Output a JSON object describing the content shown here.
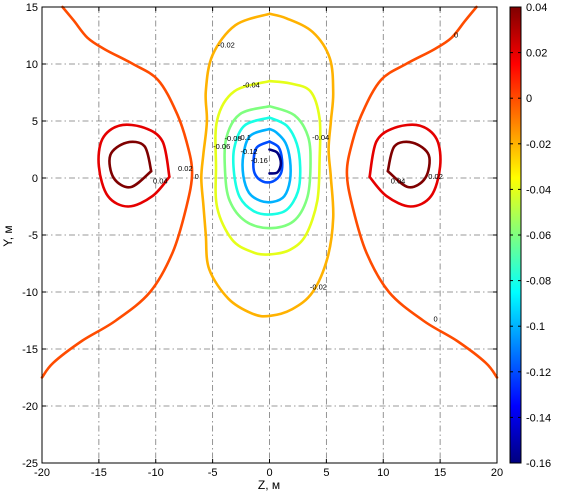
{
  "chart_data": {
    "type": "contour",
    "title": "",
    "xlabel": "Z, м",
    "ylabel": "Y, м",
    "xlim": [
      -20,
      20
    ],
    "ylim": [
      -25,
      15
    ],
    "xticks": [
      -20,
      -15,
      -10,
      -5,
      0,
      5,
      10,
      15,
      20
    ],
    "yticks": [
      -25,
      -20,
      -15,
      -10,
      -5,
      0,
      5,
      10,
      15
    ],
    "grid": true,
    "colorbar": {
      "min": -0.16,
      "max": 0.04,
      "ticks": [
        0.04,
        0.02,
        0,
        -0.02,
        -0.04,
        -0.06,
        -0.08,
        -0.1,
        -0.12,
        -0.14,
        -0.16
      ],
      "tick_labels": [
        "0.04",
        "0.02",
        "0",
        "-0.02",
        "-0.04",
        "-0.06",
        "-0.08",
        "-0.1",
        "-0.12",
        "-0.14",
        "-0.16"
      ],
      "colormap": "jet",
      "colors": [
        "#00007f",
        "#0000ff",
        "#007fff",
        "#00ffff",
        "#7fff7f",
        "#ffff00",
        "#ff7f00",
        "#ff0000",
        "#7f0000"
      ]
    },
    "series": [
      {
        "level": 0,
        "segments": [
          [
            [
              -18.2,
              15
            ],
            [
              -17.2,
              13.8
            ],
            [
              -16,
              12.3
            ],
            [
              -14.5,
              11.3
            ],
            [
              -12,
              10
            ],
            [
              -9.8,
              8.6
            ],
            [
              -8.2,
              5.8
            ],
            [
              -7.3,
              3.2
            ],
            [
              -6.8,
              0.5
            ],
            [
              -7.3,
              -2.5
            ],
            [
              -8.5,
              -6.5
            ],
            [
              -10.5,
              -10
            ],
            [
              -13.5,
              -12.5
            ],
            [
              -16.5,
              -14.3
            ],
            [
              -19,
              -16.2
            ],
            [
              -20,
              -17.5
            ]
          ],
          [
            [
              18.2,
              15
            ],
            [
              17.2,
              13.8
            ],
            [
              16,
              12.3
            ],
            [
              14.5,
              11.3
            ],
            [
              12,
              10
            ],
            [
              9.8,
              8.6
            ],
            [
              8.2,
              5.8
            ],
            [
              7.3,
              3.2
            ],
            [
              6.8,
              0.5
            ],
            [
              7.3,
              -2.5
            ],
            [
              8.5,
              -6.5
            ],
            [
              10.5,
              -10
            ],
            [
              13.5,
              -12.5
            ],
            [
              16.5,
              -14.3
            ],
            [
              19,
              -16.2
            ],
            [
              20,
              -17.5
            ]
          ]
        ],
        "labels": [
          {
            "text": "0",
            "z": 16.4,
            "y": 12.5
          },
          {
            "text": "0",
            "z": -6.4,
            "y": 0.1
          },
          {
            "text": "0",
            "z": 14.6,
            "y": -12.4
          }
        ]
      },
      {
        "level": 0.02,
        "segments": [
          [
            [
              -8.8,
              0.1
            ],
            [
              -9.4,
              3.2
            ],
            [
              -11,
              4.4
            ],
            [
              -13.2,
              4.6
            ],
            [
              -14.7,
              3.4
            ],
            [
              -15,
              1
            ],
            [
              -14.2,
              -1.6
            ],
            [
              -12.4,
              -2.5
            ],
            [
              -10.3,
              -1.6
            ],
            [
              -8.8,
              0.1
            ]
          ],
          [
            [
              8.8,
              0.1
            ],
            [
              9.4,
              3.2
            ],
            [
              11,
              4.4
            ],
            [
              13.2,
              4.6
            ],
            [
              14.7,
              3.4
            ],
            [
              15,
              1
            ],
            [
              14.2,
              -1.6
            ],
            [
              12.4,
              -2.5
            ],
            [
              10.3,
              -1.6
            ],
            [
              8.8,
              0.1
            ]
          ]
        ],
        "labels": [
          {
            "text": "0.02",
            "z": -7.4,
            "y": 0.8
          },
          {
            "text": "0.02",
            "z": 14.6,
            "y": 0.1
          }
        ]
      },
      {
        "level": 0.04,
        "segments": [
          [
            [
              -10.4,
              0.6
            ],
            [
              -11,
              2.8
            ],
            [
              -12.6,
              3.1
            ],
            [
              -14,
              2
            ],
            [
              -13.7,
              0
            ],
            [
              -12.2,
              -0.8
            ],
            [
              -10.4,
              0.6
            ]
          ],
          [
            [
              10.4,
              0.6
            ],
            [
              11,
              2.8
            ],
            [
              12.6,
              3.1
            ],
            [
              14,
              2
            ],
            [
              13.7,
              0
            ],
            [
              12.2,
              -0.8
            ],
            [
              10.4,
              0.6
            ]
          ]
        ],
        "labels": [
          {
            "text": "0.04",
            "z": -9.6,
            "y": -0.3
          },
          {
            "text": "0.04",
            "z": 11.3,
            "y": -0.3
          }
        ]
      },
      {
        "level": -0.02,
        "segments": [
          [
            [
              0,
              14.4
            ],
            [
              -3,
              13.4
            ],
            [
              -5,
              10.8
            ],
            [
              -5.6,
              7.6
            ],
            [
              -5.5,
              5
            ],
            [
              -5.8,
              2.2
            ],
            [
              -6,
              0
            ],
            [
              -5.8,
              -2.5
            ],
            [
              -5.6,
              -5
            ],
            [
              -5.3,
              -8
            ],
            [
              -3.6,
              -10.6
            ],
            [
              -1.5,
              -11.9
            ],
            [
              0,
              -12.1
            ],
            [
              2,
              -11.5
            ],
            [
              3.8,
              -10
            ],
            [
              5.1,
              -7
            ],
            [
              5.6,
              -3.5
            ],
            [
              5.4,
              0
            ],
            [
              5.2,
              2.5
            ],
            [
              5.4,
              5
            ],
            [
              5.6,
              7.5
            ],
            [
              5.3,
              10.5
            ],
            [
              3.8,
              12.8
            ],
            [
              1.5,
              14
            ],
            [
              0,
              14.4
            ]
          ]
        ],
        "labels": [
          {
            "text": "-0.02",
            "z": -3.8,
            "y": 11.6
          },
          {
            "text": "-0.02",
            "z": 4.3,
            "y": -9.6
          }
        ]
      },
      {
        "level": -0.04,
        "segments": [
          [
            [
              0,
              8.5
            ],
            [
              -3.1,
              7.6
            ],
            [
              -4.6,
              5.1
            ],
            [
              -4.7,
              1
            ],
            [
              -4.6,
              -2.6
            ],
            [
              -3.3,
              -5.4
            ],
            [
              -1.5,
              -6.5
            ],
            [
              0,
              -6.7
            ],
            [
              1.8,
              -6.3
            ],
            [
              3.2,
              -5
            ],
            [
              4.2,
              -2
            ],
            [
              4.4,
              1.6
            ],
            [
              4.4,
              5.2
            ],
            [
              3.6,
              7.6
            ],
            [
              1.8,
              8.3
            ],
            [
              0,
              8.5
            ]
          ]
        ],
        "labels": [
          {
            "text": "-0.04",
            "z": -1.6,
            "y": 8.1
          },
          {
            "text": "-0.04",
            "z": 4.5,
            "y": 3.5
          }
        ]
      },
      {
        "level": -0.06,
        "segments": [
          [
            [
              0,
              6.3
            ],
            [
              -2.6,
              5.6
            ],
            [
              -3.8,
              3.5
            ],
            [
              -3.9,
              0.5
            ],
            [
              -3.5,
              -2
            ],
            [
              -2.1,
              -3.8
            ],
            [
              0,
              -4.4
            ],
            [
              2.1,
              -3.8
            ],
            [
              3.3,
              -1.8
            ],
            [
              3.6,
              1
            ],
            [
              3.4,
              3.6
            ],
            [
              2.2,
              5.5
            ],
            [
              0,
              6.3
            ]
          ]
        ],
        "labels": [
          {
            "text": "-0.06",
            "z": -4.2,
            "y": 2.7
          }
        ]
      },
      {
        "level": -0.08,
        "segments": [
          [
            [
              0,
              5.3
            ],
            [
              -2.2,
              4.6
            ],
            [
              -3.1,
              2.6
            ],
            [
              -3.1,
              0.3
            ],
            [
              -2.6,
              -1.7
            ],
            [
              -1.4,
              -2.9
            ],
            [
              0,
              -3.2
            ],
            [
              1.5,
              -2.8
            ],
            [
              2.5,
              -1.2
            ],
            [
              2.7,
              0.9
            ],
            [
              2.4,
              3
            ],
            [
              1.5,
              4.6
            ],
            [
              0,
              5.3
            ]
          ]
        ],
        "labels": [
          {
            "text": "-0.08",
            "z": -3.2,
            "y": 3.4
          }
        ]
      },
      {
        "level": -0.1,
        "segments": [
          [
            [
              0,
              4.3
            ],
            [
              -1.7,
              3.7
            ],
            [
              -2.3,
              2
            ],
            [
              -2.3,
              0.2
            ],
            [
              -1.8,
              -1.3
            ],
            [
              -0.8,
              -2
            ],
            [
              0.3,
              -2.1
            ],
            [
              1.3,
              -1.6
            ],
            [
              1.8,
              -0.2
            ],
            [
              1.8,
              1.6
            ],
            [
              1.4,
              3.1
            ],
            [
              0.6,
              4
            ],
            [
              0,
              4.3
            ]
          ]
        ],
        "labels": [
          {
            "text": "-0.1",
            "z": -2.2,
            "y": 3.5
          }
        ]
      },
      {
        "level": -0.12,
        "segments": [
          [
            [
              0,
              3.2
            ],
            [
              -1.1,
              2.7
            ],
            [
              -1.4,
              1.6
            ],
            [
              -1.3,
              0.4
            ],
            [
              -0.6,
              -0.3
            ],
            [
              0.3,
              -0.3
            ],
            [
              1,
              0.4
            ],
            [
              1.1,
              1.6
            ],
            [
              0.8,
              2.7
            ],
            [
              0,
              3.2
            ]
          ]
        ],
        "labels": [
          {
            "text": "-0.12",
            "z": -1.8,
            "y": 2.3
          }
        ]
      },
      {
        "level": -0.16,
        "segments": [
          [
            [
              0,
              2.5
            ],
            [
              0.7,
              2.2
            ],
            [
              1,
              1.3
            ],
            [
              0.7,
              0.5
            ],
            [
              0,
              0.4
            ]
          ]
        ],
        "labels": [
          {
            "text": "-0.16",
            "z": -0.9,
            "y": 1.5
          }
        ]
      }
    ]
  }
}
